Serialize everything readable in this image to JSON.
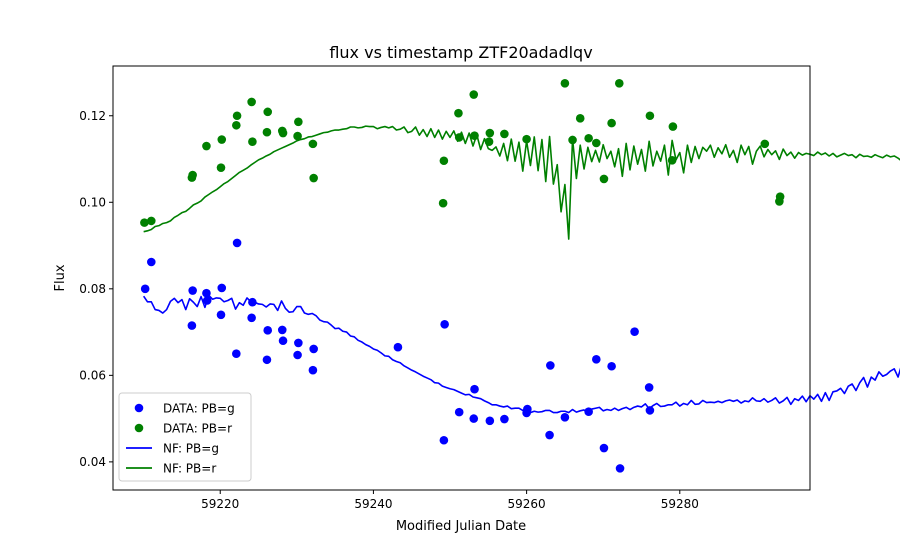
{
  "chart_data": {
    "type": "scatter",
    "title": "flux vs timestamp ZTF20adadlqv",
    "xlabel": "Modified Julian Date",
    "ylabel": "Flux",
    "xlim": [
      59206,
      59297
    ],
    "ylim": [
      0.0335,
      0.1315
    ],
    "xticks": [
      59220,
      59240,
      59260,
      59280
    ],
    "yticks": [
      0.04,
      0.06,
      0.08,
      0.1,
      0.12
    ],
    "xtick_labels": [
      "59220",
      "59240",
      "59260",
      "59280"
    ],
    "ytick_labels": [
      "0.04",
      "0.06",
      "0.08",
      "0.10",
      "0.12"
    ],
    "grid": false,
    "legend_position": "lower-left",
    "legend": [
      {
        "label": "DATA: PB=g",
        "kind": "marker",
        "color": "#0000ff"
      },
      {
        "label": "DATA: PB=r",
        "kind": "marker",
        "color": "#008000"
      },
      {
        "label": "NF: PB=g",
        "kind": "line",
        "color": "#0000ff"
      },
      {
        "label": "NF: PB=r",
        "kind": "line",
        "color": "#008000"
      }
    ],
    "series": [
      {
        "name": "DATA: PB=g",
        "kind": "scatter",
        "color": "#0000ff",
        "points": [
          [
            59210.2,
            0.08
          ],
          [
            59211.0,
            0.0862
          ],
          [
            59216.3,
            0.0715
          ],
          [
            59216.4,
            0.0796
          ],
          [
            59218.2,
            0.079
          ],
          [
            59218.3,
            0.0773
          ],
          [
            59220.1,
            0.074
          ],
          [
            59220.2,
            0.0802
          ],
          [
            59222.1,
            0.065
          ],
          [
            59222.2,
            0.0906
          ],
          [
            59224.1,
            0.0733
          ],
          [
            59224.2,
            0.0769
          ],
          [
            59226.1,
            0.0636
          ],
          [
            59226.2,
            0.0704
          ],
          [
            59228.1,
            0.0705
          ],
          [
            59228.2,
            0.068
          ],
          [
            59230.1,
            0.0647
          ],
          [
            59230.2,
            0.0675
          ],
          [
            59232.1,
            0.0612
          ],
          [
            59232.2,
            0.0661
          ],
          [
            59243.2,
            0.0665
          ],
          [
            59249.2,
            0.045
          ],
          [
            59249.3,
            0.0718
          ],
          [
            59251.2,
            0.0515
          ],
          [
            59253.1,
            0.05
          ],
          [
            59253.2,
            0.0568
          ],
          [
            59255.2,
            0.0495
          ],
          [
            59257.1,
            0.0499
          ],
          [
            59260.0,
            0.0513
          ],
          [
            59260.1,
            0.0522
          ],
          [
            59263.0,
            0.0462
          ],
          [
            59263.1,
            0.0623
          ],
          [
            59265.0,
            0.0503
          ],
          [
            59268.1,
            0.0516
          ],
          [
            59269.1,
            0.0637
          ],
          [
            59270.1,
            0.0432
          ],
          [
            59271.1,
            0.0621
          ],
          [
            59272.2,
            0.0385
          ],
          [
            59274.1,
            0.0701
          ],
          [
            59276.0,
            0.0572
          ],
          [
            59276.1,
            0.0519
          ]
        ]
      },
      {
        "name": "DATA: PB=r",
        "kind": "scatter",
        "color": "#008000",
        "points": [
          [
            59210.1,
            0.0953
          ],
          [
            59211.0,
            0.0957
          ],
          [
            59216.3,
            0.1057
          ],
          [
            59216.4,
            0.1063
          ],
          [
            59218.2,
            0.113
          ],
          [
            59220.1,
            0.108
          ],
          [
            59220.2,
            0.1145
          ],
          [
            59222.1,
            0.1178
          ],
          [
            59222.2,
            0.12
          ],
          [
            59224.1,
            0.1232
          ],
          [
            59224.2,
            0.114
          ],
          [
            59226.1,
            0.1162
          ],
          [
            59226.2,
            0.1209
          ],
          [
            59228.1,
            0.1165
          ],
          [
            59228.2,
            0.116
          ],
          [
            59230.1,
            0.1153
          ],
          [
            59230.2,
            0.1186
          ],
          [
            59232.1,
            0.1135
          ],
          [
            59232.2,
            0.1056
          ],
          [
            59249.1,
            0.0998
          ],
          [
            59249.2,
            0.1096
          ],
          [
            59251.1,
            0.1206
          ],
          [
            59251.2,
            0.115
          ],
          [
            59253.1,
            0.1249
          ],
          [
            59253.2,
            0.1154
          ],
          [
            59255.1,
            0.114
          ],
          [
            59255.2,
            0.116
          ],
          [
            59257.1,
            0.1158
          ],
          [
            59260.0,
            0.1146
          ],
          [
            59265.0,
            0.1275
          ],
          [
            59266.0,
            0.1144
          ],
          [
            59267.0,
            0.1194
          ],
          [
            59268.1,
            0.1148
          ],
          [
            59269.1,
            0.1137
          ],
          [
            59270.1,
            0.1054
          ],
          [
            59271.1,
            0.1183
          ],
          [
            59272.1,
            0.1275
          ],
          [
            59276.1,
            0.12
          ],
          [
            59279.0,
            0.1097
          ],
          [
            59279.1,
            0.1175
          ],
          [
            59291.1,
            0.1135
          ],
          [
            59293.0,
            0.1002
          ],
          [
            59293.1,
            0.1013
          ]
        ]
      },
      {
        "name": "NF: PB=g",
        "kind": "line",
        "color": "#0000ff",
        "x_start": 59210.0,
        "x_step": 0.5,
        "values": [
          0.0783,
          0.077,
          0.077,
          0.0752,
          0.075,
          0.0744,
          0.0752,
          0.0771,
          0.0778,
          0.0768,
          0.0775,
          0.0752,
          0.0777,
          0.0769,
          0.0759,
          0.0782,
          0.0757,
          0.0785,
          0.0776,
          0.0779,
          0.0778,
          0.077,
          0.0773,
          0.0778,
          0.0753,
          0.0768,
          0.0762,
          0.0779,
          0.077,
          0.0769,
          0.0765,
          0.0764,
          0.0758,
          0.0765,
          0.0764,
          0.075,
          0.0772,
          0.0755,
          0.0746,
          0.0747,
          0.0759,
          0.0759,
          0.0744,
          0.0741,
          0.0743,
          0.0738,
          0.0728,
          0.0724,
          0.0723,
          0.0716,
          0.0708,
          0.0709,
          0.0702,
          0.07,
          0.0691,
          0.0689,
          0.0681,
          0.0677,
          0.0671,
          0.0667,
          0.0661,
          0.0658,
          0.0652,
          0.0645,
          0.0644,
          0.0636,
          0.0632,
          0.0629,
          0.0622,
          0.0617,
          0.0612,
          0.0608,
          0.0603,
          0.0598,
          0.0594,
          0.059,
          0.0583,
          0.0582,
          0.0575,
          0.0572,
          0.0569,
          0.0567,
          0.0563,
          0.0559,
          0.0555,
          0.0556,
          0.055,
          0.0548,
          0.0546,
          0.0541,
          0.0537,
          0.0532,
          0.0532,
          0.0529,
          0.0527,
          0.0529,
          0.0523,
          0.0524,
          0.0524,
          0.0519,
          0.0524,
          0.0514,
          0.0517,
          0.0515,
          0.0516,
          0.0519,
          0.0519,
          0.0514,
          0.0514,
          0.0517,
          0.0517,
          0.0514,
          0.0521,
          0.0515,
          0.0518,
          0.052,
          0.0513,
          0.0522,
          0.0524,
          0.0526,
          0.0518,
          0.0521,
          0.0519,
          0.0524,
          0.0519,
          0.0523,
          0.0526,
          0.0521,
          0.0526,
          0.0529,
          0.0527,
          0.0534,
          0.0523,
          0.053,
          0.0535,
          0.0528,
          0.0529,
          0.0532,
          0.0532,
          0.0538,
          0.0529,
          0.0535,
          0.0532,
          0.0542,
          0.0533,
          0.0534,
          0.0542,
          0.0537,
          0.0538,
          0.0537,
          0.054,
          0.0537,
          0.0541,
          0.0543,
          0.054,
          0.0543,
          0.0536,
          0.0541,
          0.0539,
          0.0548,
          0.0541,
          0.054,
          0.0546,
          0.0538,
          0.0542,
          0.0548,
          0.0536,
          0.0541,
          0.0549,
          0.0533,
          0.0546,
          0.0542,
          0.0552,
          0.0539,
          0.0553,
          0.0545,
          0.0556,
          0.054,
          0.056,
          0.0542,
          0.0562,
          0.0564,
          0.057,
          0.0558,
          0.0575,
          0.058,
          0.0565,
          0.0583,
          0.0595,
          0.0573,
          0.0596,
          0.0589,
          0.0608,
          0.0598,
          0.0602,
          0.061,
          0.0615,
          0.0596,
          0.0627
        ]
      },
      {
        "name": "NF: PB=r",
        "kind": "line",
        "color": "#008000",
        "x_start": 59210.0,
        "x_step": 0.5,
        "values": [
          0.0932,
          0.0934,
          0.0937,
          0.0944,
          0.0946,
          0.0951,
          0.0953,
          0.0957,
          0.0965,
          0.097,
          0.0976,
          0.0979,
          0.0986,
          0.0994,
          0.0998,
          0.1003,
          0.1012,
          0.1018,
          0.1024,
          0.1029,
          0.1036,
          0.1043,
          0.1048,
          0.1055,
          0.1062,
          0.1069,
          0.1074,
          0.1079,
          0.1086,
          0.1092,
          0.1098,
          0.1102,
          0.1107,
          0.1111,
          0.1117,
          0.1121,
          0.1125,
          0.1129,
          0.1133,
          0.1137,
          0.1142,
          0.1145,
          0.1147,
          0.1151,
          0.1152,
          0.1155,
          0.1158,
          0.1161,
          0.1162,
          0.1165,
          0.1167,
          0.1167,
          0.1169,
          0.117,
          0.1174,
          0.1174,
          0.1172,
          0.1173,
          0.1176,
          0.1175,
          0.1175,
          0.117,
          0.1173,
          0.1175,
          0.1172,
          0.1175,
          0.1167,
          0.1169,
          0.1174,
          0.1161,
          0.1164,
          0.1174,
          0.1155,
          0.1168,
          0.1152,
          0.117,
          0.115,
          0.1167,
          0.1146,
          0.1164,
          0.115,
          0.1165,
          0.1141,
          0.1162,
          0.1136,
          0.116,
          0.113,
          0.1156,
          0.1122,
          0.1147,
          0.1124,
          0.112,
          0.1128,
          0.1107,
          0.1136,
          0.1096,
          0.1146,
          0.1095,
          0.1139,
          0.1072,
          0.1142,
          0.1085,
          0.1151,
          0.1073,
          0.1145,
          0.1048,
          0.1152,
          0.1042,
          0.1087,
          0.0978,
          0.1041,
          0.0915,
          0.1147,
          0.1055,
          0.1132,
          0.1077,
          0.1127,
          0.1094,
          0.112,
          0.1093,
          0.1133,
          0.1101,
          0.1118,
          0.1082,
          0.1124,
          0.106,
          0.1136,
          0.1075,
          0.113,
          0.1088,
          0.1122,
          0.1072,
          0.1141,
          0.1084,
          0.1118,
          0.1095,
          0.1132,
          0.1063,
          0.1143,
          0.1098,
          0.1115,
          0.1068,
          0.1132,
          0.1092,
          0.1129,
          0.1101,
          0.1127,
          0.1118,
          0.1132,
          0.1104,
          0.1126,
          0.1112,
          0.1133,
          0.1104,
          0.112,
          0.1092,
          0.1132,
          0.111,
          0.1129,
          0.1088,
          0.1118,
          0.113,
          0.1105,
          0.1122,
          0.111,
          0.1119,
          0.1099,
          0.1123,
          0.1108,
          0.1116,
          0.1102,
          0.1115,
          0.1109,
          0.1113,
          0.1111,
          0.1108,
          0.1116,
          0.111,
          0.1114,
          0.1107,
          0.1113,
          0.1105,
          0.1109,
          0.1113,
          0.1108,
          0.111,
          0.1103,
          0.1111,
          0.1106,
          0.1107,
          0.1104,
          0.111,
          0.1106,
          0.1103,
          0.1109,
          0.1105,
          0.1107,
          0.1102,
          0.1095,
          0.1091
        ]
      }
    ]
  }
}
